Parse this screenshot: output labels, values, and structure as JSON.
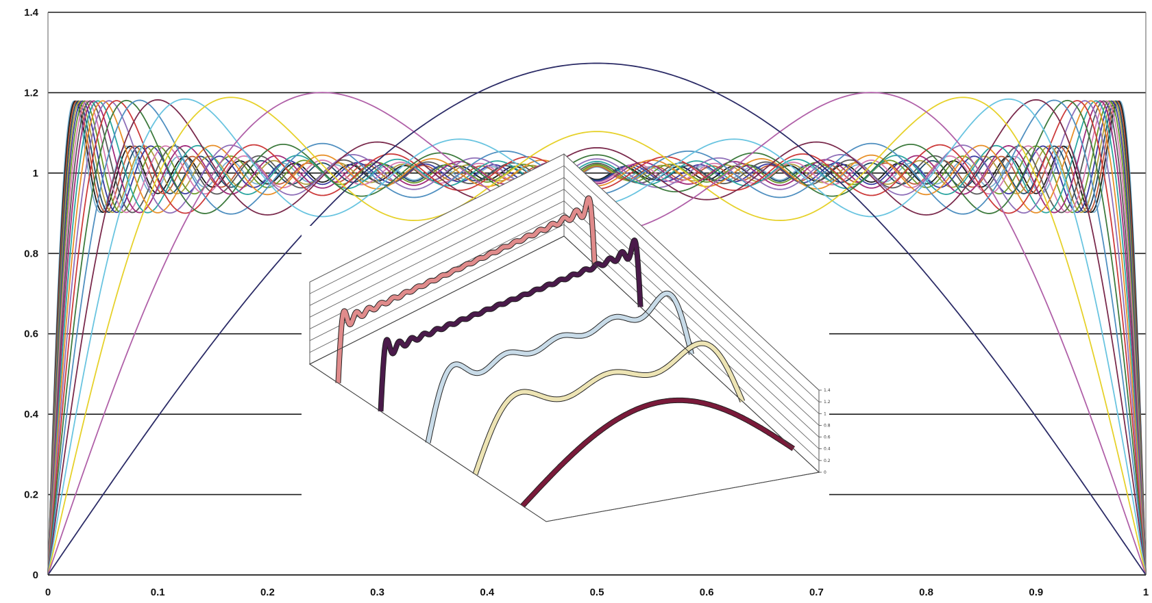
{
  "chart_data": [
    {
      "type": "line",
      "title": "",
      "xlabel": "",
      "ylabel": "",
      "xlim": [
        0,
        1
      ],
      "ylim": [
        0,
        1.4
      ],
      "x_ticks": [
        "0",
        "0.1",
        "0.2",
        "0.3",
        "0.4",
        "0.5",
        "0.6",
        "0.7",
        "0.8",
        "0.9",
        "1"
      ],
      "y_ticks": [
        "0",
        "0.2",
        "0.4",
        "0.6",
        "0.8",
        "1",
        "1.2",
        "1.4"
      ],
      "grid": "horizontal",
      "legend": "none",
      "series_description_values": {
        "function": "partial Fourier sine sums of a square wave on [0,1]",
        "harmonic_counts": [
          1,
          3,
          5,
          7,
          9,
          11,
          13,
          15,
          17,
          19,
          21,
          23,
          25,
          27,
          29,
          31,
          33,
          35,
          37,
          39,
          41
        ]
      },
      "series_colors": [
        "#2b2b66",
        "#b060a8",
        "#e6d12a",
        "#69c4e0",
        "#7a2a4c",
        "#4f8fc0",
        "#3d7a3d",
        "#cc3a3a",
        "#8f6fb8",
        "#e8902a",
        "#2aa5a0",
        "#a02a7a",
        "#5a5a5a",
        "#d67ab0",
        "#6a9a2a",
        "#3a3aa0",
        "#b0a040",
        "#204a6a",
        "#c05a3a",
        "#1a1a1a",
        "#7ab0d0"
      ],
      "peak_value": 1.27
    },
    {
      "type": "line",
      "title": "",
      "ylim": [
        0,
        1.4
      ],
      "y_ticks": [
        "1.4",
        "1.2",
        "1",
        "0.8",
        "0.6",
        "0.4",
        "0.2",
        "0"
      ],
      "series_colors": [
        "#e08b8b",
        "#4a1a4a",
        "#c8dbe8",
        "#ede4b4",
        "#7a1a3a"
      ],
      "harmonic_counts": [
        41,
        41,
        9,
        5,
        1
      ]
    }
  ]
}
